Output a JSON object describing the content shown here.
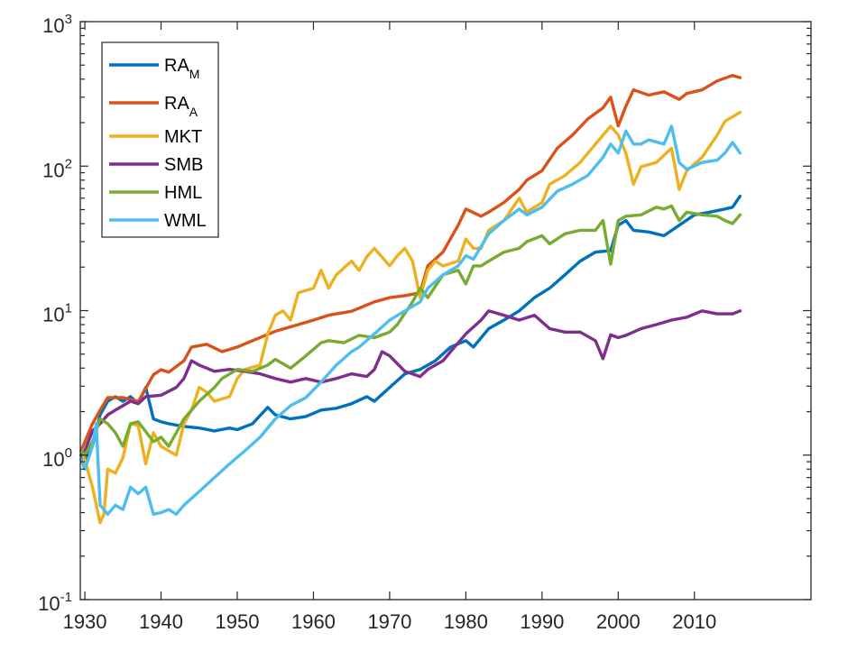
{
  "chart_data": {
    "type": "line",
    "title": "",
    "xlabel": "",
    "ylabel": "",
    "yscale": "log",
    "xlim": [
      1929.4,
      2025.3
    ],
    "ylim": [
      0.1,
      1000
    ],
    "grid": false,
    "legend_position": "top-left",
    "x_ticks": [
      1930,
      1940,
      1950,
      1960,
      1970,
      1980,
      1990,
      2000,
      2010
    ],
    "x_tick_labels": [
      "1930",
      "1940",
      "1950",
      "1960",
      "1970",
      "1980",
      "1990",
      "2000",
      "2010"
    ],
    "y_ticks": [
      0.1,
      1,
      10,
      100,
      1000
    ],
    "y_tick_labels": [
      {
        "base": "10",
        "exp": "-1"
      },
      {
        "base": "10",
        "exp": "0"
      },
      {
        "base": "10",
        "exp": "1"
      },
      {
        "base": "10",
        "exp": "2"
      },
      {
        "base": "10",
        "exp": "3"
      }
    ],
    "series": [
      {
        "name": "RA_M",
        "label_main": "RA",
        "label_sub": "M",
        "color": "#0072BD",
        "x": [
          1929.5,
          1930,
          1931,
          1932,
          1933,
          1934,
          1935,
          1936,
          1937,
          1938,
          1939,
          1940,
          1941,
          1943,
          1945,
          1947,
          1949,
          1950,
          1952,
          1954,
          1955,
          1957,
          1959,
          1961,
          1963,
          1965,
          1967,
          1968,
          1970,
          1972,
          1974,
          1976,
          1978,
          1980,
          1981,
          1983,
          1985,
          1987,
          1989,
          1991,
          1993,
          1995,
          1997,
          1999,
          2000,
          2001,
          2002,
          2004,
          2006,
          2008,
          2010,
          2012,
          2014,
          2015,
          2016
        ],
        "values": [
          1.0,
          0.93,
          1.15,
          1.9,
          2.36,
          2.54,
          2.36,
          2.54,
          2.27,
          2.94,
          1.78,
          1.7,
          1.65,
          1.58,
          1.54,
          1.47,
          1.54,
          1.5,
          1.65,
          2.14,
          1.9,
          1.78,
          1.85,
          2.05,
          2.11,
          2.27,
          2.54,
          2.36,
          2.94,
          3.65,
          3.92,
          4.5,
          5.6,
          6.2,
          5.6,
          7.5,
          8.6,
          9.96,
          12.3,
          14.3,
          17.7,
          22,
          25.4,
          26,
          39,
          42,
          36,
          35,
          33,
          39,
          46,
          48,
          50.5,
          52,
          62
        ]
      },
      {
        "name": "RA_A",
        "label_main": "RA",
        "label_sub": "A",
        "color": "#D95319",
        "x": [
          1929.5,
          1931,
          1932,
          1933,
          1935,
          1937,
          1938,
          1939,
          1940,
          1941,
          1943,
          1944,
          1946,
          1948,
          1950,
          1952,
          1955,
          1958,
          1960,
          1962,
          1965,
          1968,
          1970,
          1972,
          1974,
          1975,
          1977,
          1979,
          1980,
          1982,
          1983,
          1985,
          1987,
          1988,
          1990,
          1992,
          1994,
          1996,
          1998,
          1999,
          2000,
          2001,
          2002,
          2004,
          2006,
          2008,
          2009,
          2011,
          2013,
          2015,
          2016
        ],
        "values": [
          1.07,
          1.65,
          2.05,
          2.5,
          2.5,
          2.35,
          2.9,
          3.6,
          3.9,
          3.75,
          4.5,
          5.6,
          5.85,
          5.2,
          5.6,
          6.2,
          7.2,
          8.0,
          8.6,
          9.3,
          9.9,
          11.5,
          12.3,
          12.7,
          13.3,
          20.4,
          25.4,
          39,
          50.5,
          45,
          48,
          56,
          69,
          80,
          93,
          133,
          164,
          212,
          253,
          300,
          190,
          260,
          337,
          310,
          327,
          290,
          318,
          337,
          389,
          424,
          410
        ]
      },
      {
        "name": "MKT",
        "label_main": "MKT",
        "label_sub": "",
        "color": "#EDB120",
        "x": [
          1929.5,
          1930,
          1931,
          1932,
          1932.5,
          1933,
          1934,
          1935,
          1936,
          1937,
          1938,
          1939,
          1940,
          1941,
          1942,
          1943,
          1944,
          1945,
          1946,
          1947,
          1949,
          1950,
          1951,
          1953,
          1954,
          1955,
          1956,
          1957,
          1958,
          1960,
          1961,
          1962,
          1963,
          1965,
          1966,
          1967,
          1968,
          1970,
          1971,
          1972,
          1973,
          1974,
          1975,
          1976,
          1977,
          1979,
          1980,
          1981,
          1982,
          1983,
          1985,
          1987,
          1988,
          1990,
          1991,
          1993,
          1995,
          1997,
          1999,
          2000,
          2001,
          2002,
          2003,
          2005,
          2007,
          2008,
          2009,
          2011,
          2013,
          2014,
          2016
        ],
        "values": [
          1.07,
          0.93,
          0.6,
          0.34,
          0.39,
          0.8,
          0.75,
          0.96,
          1.65,
          1.6,
          0.87,
          1.43,
          1.15,
          1.07,
          1.0,
          1.65,
          2.05,
          2.94,
          2.73,
          2.36,
          2.54,
          3.39,
          3.92,
          4.2,
          6.9,
          9.3,
          9.96,
          8.6,
          13.3,
          14.3,
          19,
          14.3,
          17.7,
          22,
          19,
          23.6,
          27,
          20.4,
          24,
          27,
          22,
          12.3,
          19,
          22,
          20.4,
          22,
          31.3,
          27,
          27,
          36,
          42,
          60,
          48,
          56,
          75,
          86,
          106,
          142,
          189,
          164,
          123,
          75,
          99,
          106,
          133,
          69,
          93,
          115,
          164,
          204,
          236
        ]
      },
      {
        "name": "SMB",
        "label_main": "SMB",
        "label_sub": "",
        "color": "#7E2F8E",
        "x": [
          1929.5,
          1930,
          1931,
          1932,
          1933,
          1934,
          1935,
          1936,
          1937,
          1938,
          1940,
          1942,
          1943,
          1944,
          1945,
          1947,
          1949,
          1951,
          1953,
          1955,
          1957,
          1959,
          1961,
          1963,
          1965,
          1967,
          1968,
          1969,
          1970,
          1972,
          1974,
          1975,
          1977,
          1978,
          1980,
          1982,
          1983,
          1985,
          1987,
          1989,
          1991,
          1993,
          1995,
          1997,
          1998,
          1999,
          2000,
          2001,
          2003,
          2005,
          2007,
          2009,
          2011,
          2013,
          2015,
          2016
        ],
        "values": [
          1.0,
          1.07,
          1.47,
          1.65,
          1.9,
          2.05,
          2.2,
          2.36,
          2.27,
          2.54,
          2.6,
          2.94,
          3.39,
          4.5,
          4.2,
          3.8,
          3.92,
          3.8,
          3.65,
          3.39,
          3.2,
          3.39,
          3.2,
          3.39,
          3.65,
          3.5,
          3.92,
          5.2,
          4.86,
          3.8,
          3.5,
          3.92,
          4.5,
          5.2,
          6.9,
          8.6,
          9.96,
          9.3,
          8.6,
          9.3,
          7.5,
          7.1,
          7.1,
          6.2,
          4.65,
          6.8,
          6.5,
          6.75,
          7.5,
          8.0,
          8.6,
          9.0,
          9.96,
          9.5,
          9.5,
          9.96
        ]
      },
      {
        "name": "HML",
        "label_main": "HML",
        "label_sub": "",
        "color": "#77AC30",
        "x": [
          1929.5,
          1930,
          1931,
          1932,
          1933,
          1934,
          1935,
          1936,
          1937,
          1939,
          1940,
          1941,
          1942,
          1943,
          1945,
          1947,
          1948,
          1950,
          1952,
          1954,
          1955,
          1957,
          1959,
          1961,
          1962,
          1964,
          1966,
          1968,
          1970,
          1971,
          1973,
          1974,
          1975,
          1977,
          1979,
          1980,
          1981,
          1982,
          1983,
          1985,
          1987,
          1988,
          1990,
          1991,
          1993,
          1995,
          1997,
          1998,
          1999,
          2000,
          2001,
          2003,
          2005,
          2006,
          2007,
          2008,
          2009,
          2011,
          2013,
          2014,
          2015,
          2016
        ],
        "values": [
          1.07,
          1.0,
          1.24,
          1.78,
          1.65,
          1.43,
          1.15,
          1.65,
          1.7,
          1.24,
          1.33,
          1.15,
          1.43,
          1.78,
          2.36,
          2.94,
          3.39,
          3.92,
          3.8,
          4.2,
          4.6,
          4.0,
          4.86,
          6.0,
          6.2,
          6.0,
          6.75,
          6.5,
          7.1,
          8.0,
          11.5,
          14.3,
          12.3,
          17.7,
          19,
          15.3,
          20.4,
          20.4,
          22,
          25.4,
          27,
          30,
          33,
          29,
          34,
          36,
          36,
          42,
          21,
          42,
          45,
          46,
          52,
          50.5,
          53,
          42,
          48,
          46,
          45,
          42,
          40,
          46
        ]
      },
      {
        "name": "WML",
        "label_main": "WML",
        "label_sub": "",
        "color": "#4DBEEE",
        "x": [
          1929.5,
          1930,
          1931,
          1931.5,
          1932,
          1933,
          1934,
          1935,
          1936,
          1937,
          1938,
          1939,
          1940,
          1941,
          1942,
          1943,
          1945,
          1947,
          1949,
          1951,
          1953,
          1955,
          1957,
          1959,
          1961,
          1963,
          1965,
          1966,
          1968,
          1970,
          1972,
          1974,
          1975,
          1977,
          1979,
          1980,
          1981,
          1983,
          1985,
          1987,
          1988,
          1990,
          1992,
          1994,
          1996,
          1998,
          1999,
          2000,
          2001,
          2002,
          2003,
          2004,
          2006,
          2007,
          2008,
          2009,
          2011,
          2013,
          2014,
          2015,
          2016
        ],
        "values": [
          0.93,
          0.8,
          1.15,
          1.65,
          0.45,
          0.39,
          0.45,
          0.42,
          0.6,
          0.54,
          0.6,
          0.39,
          0.4,
          0.42,
          0.39,
          0.45,
          0.56,
          0.7,
          0.87,
          1.07,
          1.33,
          1.78,
          2.2,
          2.5,
          3.2,
          4.2,
          5.2,
          5.6,
          6.9,
          8.6,
          9.96,
          11.5,
          14.3,
          17.7,
          20.4,
          24,
          22.7,
          34,
          42,
          50.5,
          46,
          52,
          67,
          75,
          86,
          115,
          142,
          123,
          175,
          142,
          142,
          152,
          142,
          189,
          106,
          95,
          106,
          110,
          123,
          146,
          123
        ]
      }
    ]
  }
}
